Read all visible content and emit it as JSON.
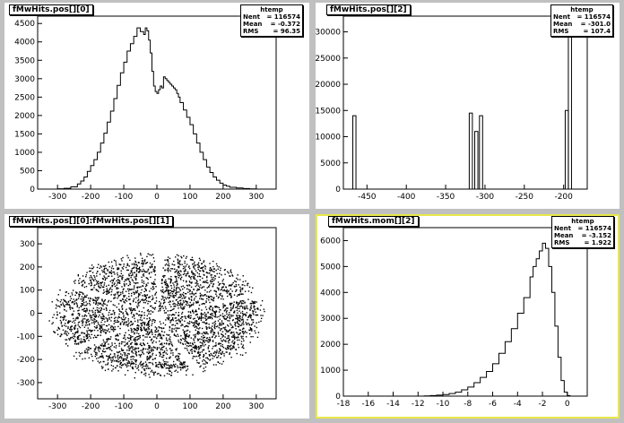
{
  "pads": [
    {
      "id": "h0",
      "title": "fMwHits.pos[][0]",
      "stats": {
        "title": "htemp",
        "rows": [
          [
            "Nent",
            "= 116574"
          ],
          [
            "Mean",
            "= -0.372"
          ],
          [
            "RMS",
            "= 96.35"
          ]
        ]
      }
    },
    {
      "id": "h2",
      "title": "fMwHits.pos[][2]",
      "stats": {
        "title": "htemp",
        "rows": [
          [
            "Nent",
            "= 116574"
          ],
          [
            "Mean",
            "= -301.0"
          ],
          [
            "RMS",
            "= 107.4"
          ]
        ]
      }
    },
    {
      "id": "scatter",
      "title": "fMwHits.pos[][0]:fMwHits.pos[][1]",
      "stats": null
    },
    {
      "id": "mom",
      "title": "fMwHits.mom[][2]",
      "stats": {
        "title": "htemp",
        "rows": [
          [
            "Nent",
            "= 116574"
          ],
          [
            "Mean",
            "= -3.152"
          ],
          [
            "RMS",
            "= 1.922"
          ]
        ]
      }
    }
  ],
  "chart_data": [
    {
      "type": "histogram",
      "title": "fMwHits.pos[][0]",
      "xlim": [
        -360,
        360
      ],
      "ylim": [
        0,
        4700
      ],
      "xticks": [
        -300,
        -200,
        -100,
        0,
        100,
        200,
        300
      ],
      "yticks": [
        0,
        500,
        1000,
        1500,
        2000,
        2500,
        3000,
        3500,
        4000,
        4500
      ],
      "x": [
        -300,
        -280,
        -260,
        -240,
        -230,
        -220,
        -210,
        -200,
        -190,
        -180,
        -170,
        -160,
        -150,
        -140,
        -130,
        -120,
        -110,
        -100,
        -90,
        -80,
        -70,
        -60,
        -50,
        -40,
        -35,
        -30,
        -25,
        -20,
        -15,
        -10,
        -5,
        0,
        5,
        10,
        15,
        20,
        25,
        30,
        35,
        40,
        45,
        50,
        55,
        60,
        65,
        70,
        80,
        90,
        100,
        110,
        120,
        130,
        140,
        150,
        160,
        170,
        180,
        190,
        200,
        210,
        220,
        240,
        260,
        280,
        300
      ],
      "values": [
        10,
        20,
        60,
        140,
        220,
        330,
        480,
        640,
        800,
        1000,
        1250,
        1520,
        1820,
        2120,
        2460,
        2820,
        3160,
        3450,
        3750,
        3950,
        4150,
        4380,
        4280,
        4200,
        4380,
        4300,
        4050,
        3700,
        3200,
        2800,
        2650,
        2600,
        2700,
        2800,
        2750,
        3050,
        3000,
        2950,
        2900,
        2850,
        2800,
        2750,
        2700,
        2600,
        2500,
        2350,
        2150,
        1950,
        1750,
        1500,
        1250,
        1000,
        800,
        600,
        450,
        330,
        240,
        160,
        110,
        80,
        50,
        30,
        15,
        5,
        0
      ],
      "xlabel": "",
      "ylabel": ""
    },
    {
      "type": "histogram",
      "title": "fMwHits.pos[][2]",
      "xlim": [
        -480,
        -170
      ],
      "ylim": [
        0,
        33000
      ],
      "xticks": [
        -450,
        -400,
        -350,
        -300,
        -250,
        -200
      ],
      "yticks": [
        0,
        5000,
        10000,
        15000,
        20000,
        25000,
        30000
      ],
      "bars": [
        {
          "x": -466,
          "value": 14000
        },
        {
          "x": -318,
          "value": 14500
        },
        {
          "x": -311,
          "value": 11000
        },
        {
          "x": -305,
          "value": 14000
        },
        {
          "x": -196,
          "value": 15000
        },
        {
          "x": -192,
          "value": 32000
        }
      ],
      "xlabel": "",
      "ylabel": ""
    },
    {
      "type": "scatter",
      "title": "fMwHits.pos[][0]:fMwHits.pos[][1]",
      "xlim": [
        -360,
        360
      ],
      "ylim": [
        -370,
        370
      ],
      "xticks": [
        -300,
        -200,
        -100,
        0,
        100,
        200,
        300
      ],
      "yticks": [
        -300,
        -200,
        -100,
        0,
        100,
        200,
        300
      ],
      "description_shape": "dense disk of hits, radius ~310 horizontally, ~250 vertically, with five radial gaps and a hole at the center",
      "xlabel": "",
      "ylabel": ""
    },
    {
      "type": "histogram",
      "title": "fMwHits.mom[][2]",
      "xlim": [
        -18,
        1.6
      ],
      "ylim": [
        0,
        6500
      ],
      "xticks": [
        -18,
        -16,
        -14,
        -12,
        -10,
        -8,
        -6,
        -4,
        -2,
        0
      ],
      "yticks": [
        0,
        1000,
        2000,
        3000,
        4000,
        5000,
        6000
      ],
      "x": [
        -11.5,
        -11,
        -10.5,
        -10,
        -9.5,
        -9,
        -8.5,
        -8,
        -7.5,
        -7,
        -6.5,
        -6,
        -5.5,
        -5,
        -4.5,
        -4,
        -3.5,
        -3,
        -2.75,
        -2.5,
        -2.25,
        -2,
        -1.75,
        -1.5,
        -1.25,
        -1,
        -0.75,
        -0.5,
        -0.25,
        0
      ],
      "values": [
        10,
        20,
        40,
        60,
        100,
        150,
        240,
        350,
        520,
        720,
        950,
        1250,
        1650,
        2100,
        2600,
        3200,
        3800,
        4600,
        5000,
        5300,
        5600,
        5900,
        5700,
        5000,
        4000,
        2700,
        1500,
        600,
        150,
        20
      ],
      "xlabel": "",
      "ylabel": ""
    }
  ]
}
